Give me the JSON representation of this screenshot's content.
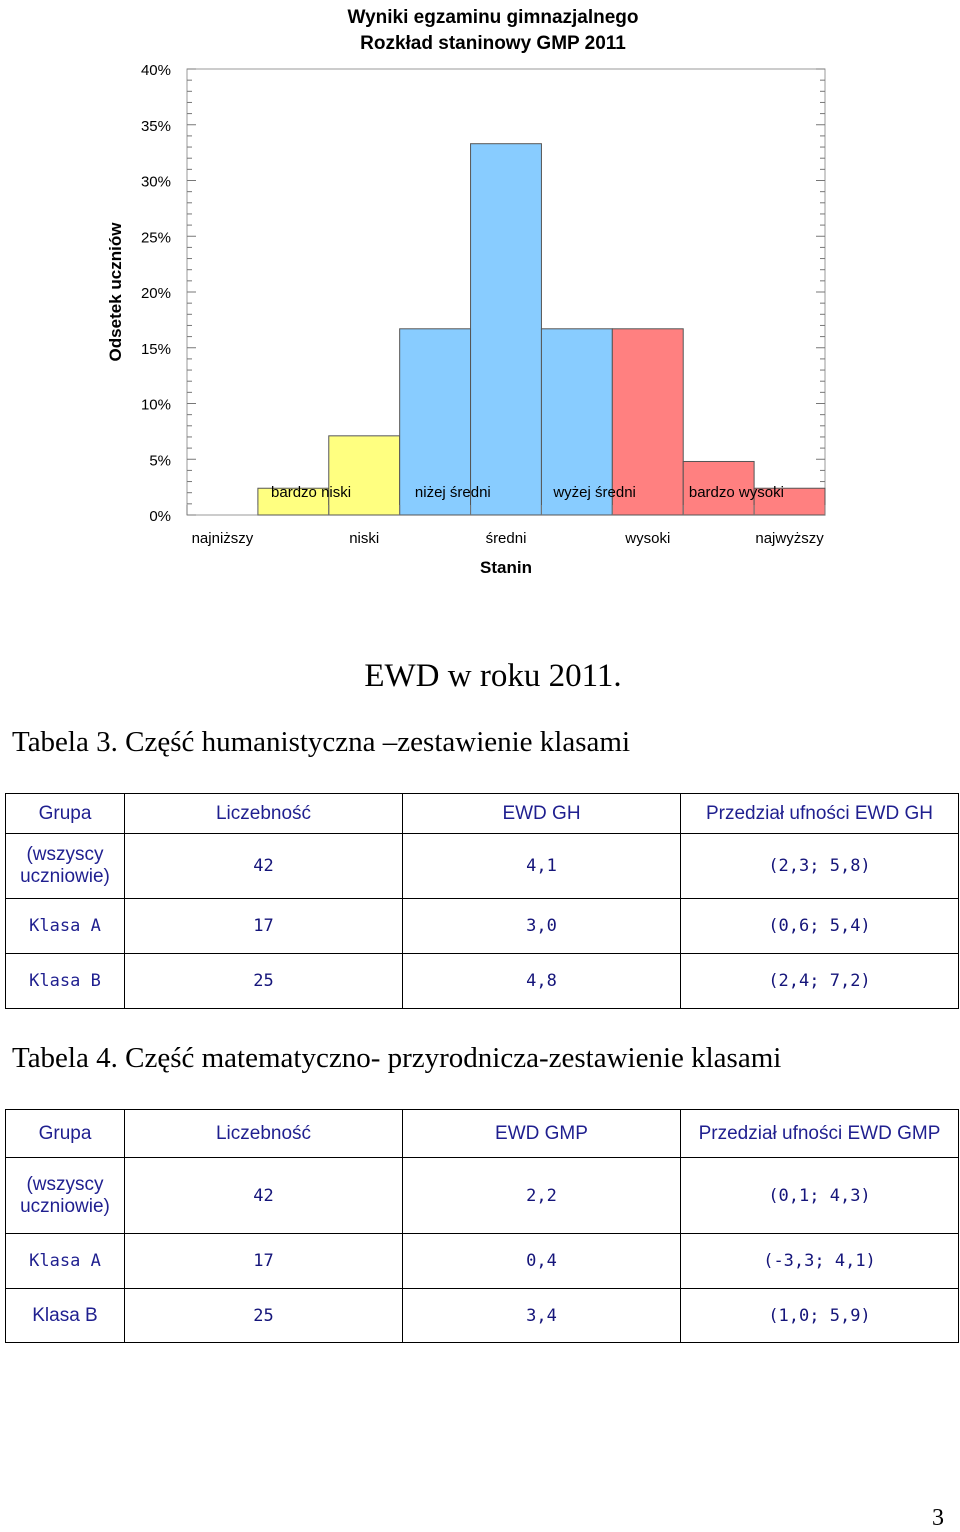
{
  "chart_data": {
    "type": "bar",
    "title": "Wyniki egzaminu gimnazjalnego",
    "subtitle": "Rozkład staninowy GMP 2011",
    "xlabel": "Stanin",
    "ylabel": "Odsetek uczniów",
    "ylim": [
      0,
      40
    ],
    "yticks": [
      "0%",
      "5%",
      "10%",
      "15%",
      "20%",
      "25%",
      "30%",
      "35%",
      "40%"
    ],
    "stanin_labels": [
      "najniższy",
      "niski",
      "średni",
      "wysoki",
      "najwyższy"
    ],
    "range_labels": [
      "bardzo niski",
      "niżej średni",
      "wyżej średni",
      "bardzo wysoki"
    ],
    "values": [
      2.4,
      7.1,
      16.7,
      33.3,
      16.7,
      16.7,
      4.8,
      2.4
    ],
    "colors": [
      "#ffff80",
      "#ffff80",
      "#88ccff",
      "#88ccff",
      "#88ccff",
      "#ff8080",
      "#ff8080",
      "#ff8080"
    ],
    "grid": false
  },
  "heading": "EWD w roku 2011.",
  "table3": {
    "caption": "Tabela 3. Część humanistyczna –zestawienie klasami",
    "headers": [
      "Grupa",
      "Liczebność",
      "EWD GH",
      "Przedział ufności EWD GH"
    ],
    "rows": [
      [
        "(wszyscy uczniowie)",
        "42",
        "4,1",
        "(2,3; 5,8)"
      ],
      [
        "Klasa A",
        "17",
        "3,0",
        "(0,6; 5,4)"
      ],
      [
        "Klasa B",
        "25",
        "4,8",
        "(2,4; 7,2)"
      ]
    ]
  },
  "table4": {
    "caption": "Tabela 4. Część matematyczno- przyrodnicza-zestawienie klasami",
    "headers": [
      "Grupa",
      "Liczebność",
      "EWD GMP",
      "Przedział ufności EWD GMP"
    ],
    "rows": [
      [
        "(wszyscy uczniowie)",
        "42",
        "2,2",
        "(0,1; 4,3)"
      ],
      [
        "Klasa A",
        "17",
        "0,4",
        "(-3,3; 4,1)"
      ],
      [
        "Klasa B",
        "25",
        "3,4",
        "(1,0; 5,9)"
      ]
    ]
  },
  "page_number": "3"
}
